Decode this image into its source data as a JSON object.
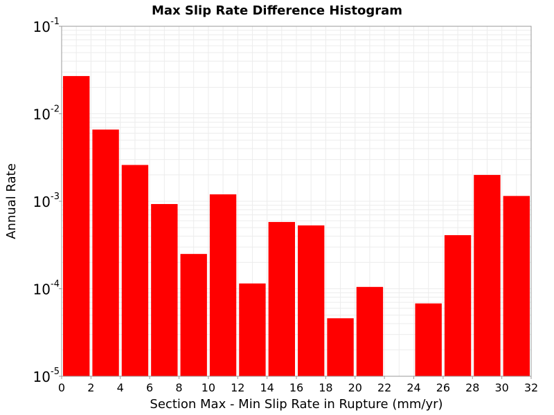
{
  "chart_data": {
    "type": "bar",
    "title": "Max Slip Rate Difference Histogram",
    "xlabel": "Section Max - Min Slip Rate in Rupture (mm/yr)",
    "ylabel": "Annual Rate",
    "y_scale": "log",
    "xlim": [
      0,
      32
    ],
    "ylim": [
      1e-05,
      0.1
    ],
    "bin_width": 2,
    "x_ticks": [
      "0",
      "2",
      "4",
      "6",
      "8",
      "10",
      "12",
      "14",
      "16",
      "18",
      "20",
      "22",
      "24",
      "26",
      "28",
      "30",
      "32"
    ],
    "y_ticks": [
      {
        "base": "10",
        "exp": "-1",
        "value": 0.1
      },
      {
        "base": "10",
        "exp": "-2",
        "value": 0.01
      },
      {
        "base": "10",
        "exp": "-3",
        "value": 0.001
      },
      {
        "base": "10",
        "exp": "-4",
        "value": 0.0001
      },
      {
        "base": "10",
        "exp": "-5",
        "value": 1e-05
      }
    ],
    "bar_color": "#ff0000",
    "grid": true,
    "bins": [
      {
        "x": 1,
        "value": 0.027
      },
      {
        "x": 3,
        "value": 0.0066
      },
      {
        "x": 5,
        "value": 0.0026
      },
      {
        "x": 7,
        "value": 0.00093
      },
      {
        "x": 9,
        "value": 0.00025
      },
      {
        "x": 11,
        "value": 0.0012
      },
      {
        "x": 13,
        "value": 0.000115
      },
      {
        "x": 15,
        "value": 0.00058
      },
      {
        "x": 17,
        "value": 0.00053
      },
      {
        "x": 19,
        "value": 4.6e-05
      },
      {
        "x": 21,
        "value": 0.000105
      },
      {
        "x": 23,
        "value": 0
      },
      {
        "x": 25,
        "value": 6.8e-05
      },
      {
        "x": 27,
        "value": 0.00041
      },
      {
        "x": 29,
        "value": 0.002
      },
      {
        "x": 31,
        "value": 0.00115
      }
    ]
  }
}
